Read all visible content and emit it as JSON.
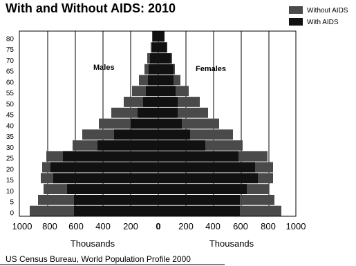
{
  "chart_data": {
    "type": "bar",
    "orientation": "horizontal",
    "title": "With and Without AIDS:  2010",
    "age_groups": [
      "0",
      "5",
      "10",
      "15",
      "20",
      "25",
      "30",
      "35",
      "40",
      "45",
      "50",
      "55",
      "60",
      "65",
      "70",
      "75",
      "80"
    ],
    "series": [
      {
        "name": "Without AIDS",
        "color": "#4a4a4a",
        "males": [
          930,
          870,
          830,
          850,
          840,
          810,
          620,
          550,
          430,
          340,
          250,
          190,
          140,
          100,
          80,
          55,
          45
        ],
        "females": [
          890,
          840,
          800,
          830,
          830,
          790,
          610,
          540,
          440,
          360,
          300,
          220,
          160,
          120,
          100,
          65,
          45
        ]
      },
      {
        "name": "With AIDS",
        "color": "#111111",
        "males": [
          610,
          610,
          660,
          760,
          780,
          690,
          440,
          320,
          200,
          150,
          110,
          90,
          75,
          70,
          60,
          45,
          40
        ],
        "females": [
          590,
          590,
          640,
          720,
          700,
          580,
          340,
          230,
          170,
          140,
          140,
          125,
          110,
          110,
          90,
          60,
          45
        ]
      }
    ],
    "x_ticks_left": [
      "1000",
      "800",
      "600",
      "400",
      "200"
    ],
    "x_tick_center": "0",
    "x_ticks_right": [
      "200",
      "400",
      "600",
      "800",
      "1000"
    ],
    "x_tick_values": [
      -1000,
      -800,
      -600,
      -400,
      -200,
      0,
      200,
      400,
      600,
      800,
      1000
    ],
    "xlim": [
      -1000,
      1000
    ],
    "xlabel_left": "Thousands",
    "xlabel_right": "Thousands",
    "male_label": "Males",
    "female_label": "Females",
    "grid": true,
    "legend_position": "top-right"
  },
  "source": "US Census Bureau, World Population Profile 2000"
}
